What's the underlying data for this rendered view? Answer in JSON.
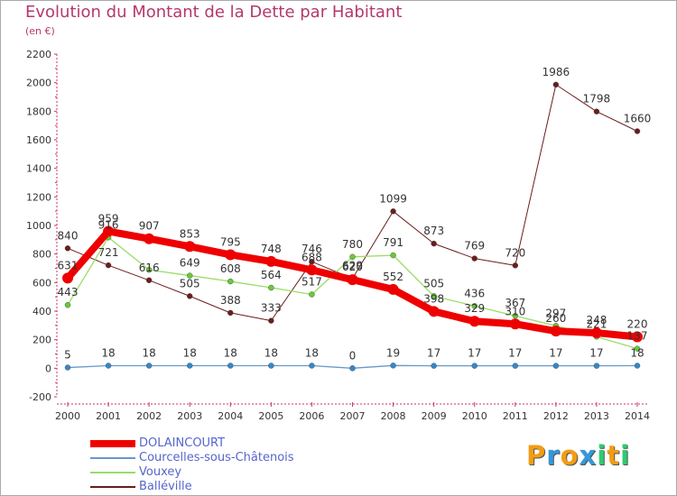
{
  "title": "Evolution du Montant de la Dette par Habitant",
  "subtitle": "(en €)",
  "logo": {
    "letters": [
      "P",
      "r",
      "o",
      "x",
      "i",
      "t",
      "i"
    ],
    "colors": [
      "#f39c12",
      "#3498db",
      "#f39c12",
      "#3498db",
      "#2ecc71",
      "#f39c12",
      "#2ecc71"
    ]
  },
  "chart_data": {
    "type": "line",
    "title": "Evolution du Montant de la Dette par Habitant",
    "subtitle": "(en €)",
    "x": [
      "2000",
      "2001",
      "2002",
      "2003",
      "2004",
      "2005",
      "2006",
      "2007",
      "2008",
      "2009",
      "2010",
      "2011",
      "2012",
      "2013",
      "2014"
    ],
    "ylim": [
      -200,
      2200
    ],
    "yticks": [
      "-200",
      "0",
      "200",
      "400",
      "600",
      "800",
      "1000",
      "1200",
      "1400",
      "1600",
      "1800",
      "2000",
      "2200"
    ],
    "yticks_values": [
      -200,
      0,
      200,
      400,
      600,
      800,
      1000,
      1200,
      1400,
      1600,
      1800,
      2000,
      2200
    ],
    "grid": false,
    "legend_position": "bottom-left",
    "series": [
      {
        "name": "Balléville",
        "color": "#6b1c1c",
        "marker": "#6b1c1c",
        "width": 1,
        "values": [
          840,
          721,
          616,
          505,
          388,
          333,
          746,
          629,
          1099,
          873,
          769,
          720,
          1986,
          1798,
          1660
        ],
        "labels": [
          "840",
          "721",
          "616",
          "505",
          "388",
          "333",
          "746",
          "629",
          "1099",
          "873",
          "769",
          "720",
          "1986",
          "1798",
          "1660"
        ]
      },
      {
        "name": "Vouxey",
        "color": "#99dd66",
        "marker": "#66cc33",
        "width": 1.3,
        "values": [
          443,
          916,
          689,
          649,
          608,
          564,
          517,
          780,
          791,
          505,
          436,
          367,
          297,
          221,
          137
        ],
        "labels": [
          "443",
          "916",
          "",
          "649",
          "608",
          "564",
          "517",
          "780",
          "791",
          "505",
          "436",
          "367",
          "297",
          "221",
          "137"
        ]
      },
      {
        "name": "Courcelles-sous-Châtenois",
        "color": "#6699cc",
        "marker": "#3388cc",
        "width": 1.3,
        "values": [
          5,
          18,
          18,
          18,
          18,
          18,
          18,
          0,
          19,
          17,
          17,
          17,
          17,
          17,
          18
        ],
        "labels": [
          "5",
          "18",
          "18",
          "18",
          "18",
          "18",
          "18",
          "0",
          "19",
          "17",
          "17",
          "17",
          "17",
          "17",
          "18"
        ]
      },
      {
        "name": "DOLAINCOURT",
        "color": "#ee0000",
        "marker": "#ee0000",
        "width": 8,
        "values": [
          631,
          959,
          907,
          853,
          795,
          748,
          688,
          620,
          552,
          398,
          329,
          310,
          260,
          248,
          220
        ],
        "labels": [
          "631",
          "959",
          "907",
          "853",
          "795",
          "748",
          "688",
          "620",
          "552",
          "398",
          "329",
          "310",
          "260",
          "248",
          "220"
        ]
      }
    ],
    "legend": [
      {
        "name": "DOLAINCOURT",
        "color": "#ee0000",
        "width": 8
      },
      {
        "name": "Courcelles-sous-Châtenois",
        "color": "#6699cc",
        "width": 2
      },
      {
        "name": "Vouxey",
        "color": "#99dd66",
        "width": 2
      },
      {
        "name": "Balléville",
        "color": "#6b1c1c",
        "width": 2
      }
    ]
  }
}
